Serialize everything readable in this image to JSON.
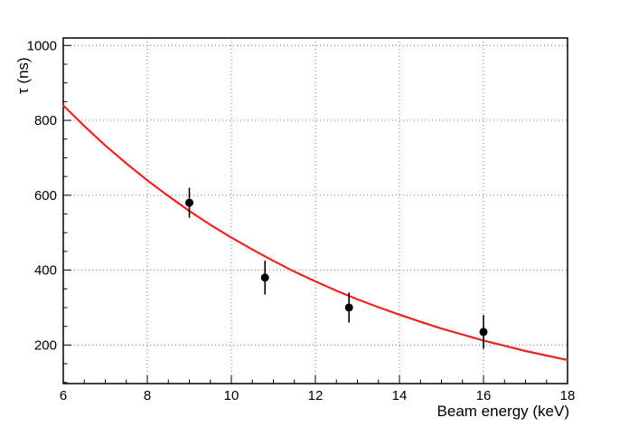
{
  "chart_data": {
    "type": "scatter",
    "title": "",
    "xlabel": "Beam energy (keV)",
    "ylabel": "τ (ns)",
    "xlim": [
      6,
      18
    ],
    "ylim": [
      97,
      1020
    ],
    "x_ticks": [
      6,
      8,
      10,
      12,
      14,
      16,
      18
    ],
    "y_ticks": [
      200,
      400,
      600,
      800,
      1000
    ],
    "x_minor_step": 0.5,
    "y_minor_step": 50,
    "grid": true,
    "grid_style": "dotted",
    "legend": "none",
    "colors": {
      "curve": "#ee2222",
      "marker": "#000000",
      "frame": "#000000",
      "grid": "#777777",
      "text": "#000000"
    },
    "series": [
      {
        "name": "fit-curve",
        "type": "line",
        "color": "#ee2222",
        "x": [
          6,
          6.5,
          7,
          7.5,
          8,
          8.5,
          9,
          9.5,
          10,
          10.5,
          11,
          11.5,
          12,
          12.5,
          13,
          13.5,
          14,
          14.5,
          15,
          15.5,
          16,
          16.5,
          17,
          17.5,
          18
        ],
        "y": [
          840,
          785,
          733,
          685,
          640,
          598,
          558,
          521,
          487,
          455,
          425,
          396,
          370,
          345,
          322,
          301,
          281,
          262,
          244,
          228,
          212,
          198,
          184,
          172,
          160
        ]
      },
      {
        "name": "measured-points",
        "type": "scatter",
        "marker": "circle",
        "color": "#000000",
        "x": [
          9.0,
          10.8,
          12.8,
          16.0
        ],
        "y": [
          580,
          380,
          300,
          235
        ],
        "yerr": [
          40,
          45,
          40,
          45
        ]
      }
    ]
  }
}
